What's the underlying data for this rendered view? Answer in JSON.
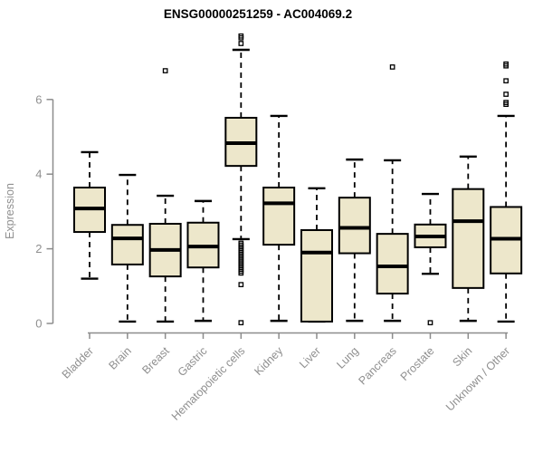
{
  "chart_data": {
    "type": "boxplot",
    "title": "ENSG00000251259 - AC004069.2",
    "ylabel": "Expression",
    "xlabel": "",
    "yticks": [
      0,
      2,
      4,
      6
    ],
    "ylim": [
      -0.2,
      7.9
    ],
    "grid": false,
    "legend": "none",
    "categories": [
      "Bladder",
      "Brain",
      "Breast",
      "Gastric",
      "Hematopoietic cells",
      "Kidney",
      "Liver",
      "Lung",
      "Pancreas",
      "Prostate",
      "Skin",
      "Unknown / Other"
    ],
    "boxes": [
      {
        "category": "Bladder",
        "low": 1.2,
        "q1": 2.45,
        "median": 3.08,
        "q3": 3.64,
        "high": 4.59,
        "outliers": []
      },
      {
        "category": "Brain",
        "low": 0.05,
        "q1": 1.58,
        "median": 2.28,
        "q3": 2.64,
        "high": 3.98,
        "outliers": []
      },
      {
        "category": "Breast",
        "low": 0.05,
        "q1": 1.26,
        "median": 1.97,
        "q3": 2.67,
        "high": 3.42,
        "outliers": [
          6.77
        ]
      },
      {
        "category": "Gastric",
        "low": 0.07,
        "q1": 1.5,
        "median": 2.06,
        "q3": 2.7,
        "high": 3.28,
        "outliers": []
      },
      {
        "category": "Hematopoietic cells",
        "low": 2.26,
        "q1": 4.22,
        "median": 4.83,
        "q3": 5.51,
        "high": 7.33,
        "outliers": [
          7.7,
          7.65,
          7.5,
          2.15,
          2.1,
          2.05,
          2.0,
          1.95,
          1.9,
          1.85,
          1.8,
          1.75,
          1.7,
          1.65,
          1.6,
          1.55,
          1.5,
          1.45,
          1.4,
          1.35,
          1.04,
          0.02
        ]
      },
      {
        "category": "Kidney",
        "low": 0.07,
        "q1": 2.11,
        "median": 3.22,
        "q3": 3.64,
        "high": 5.56,
        "outliers": []
      },
      {
        "category": "Liver",
        "low": 0.05,
        "q1": 0.05,
        "median": 1.9,
        "q3": 2.5,
        "high": 3.62,
        "outliers": []
      },
      {
        "category": "Lung",
        "low": 0.07,
        "q1": 1.88,
        "median": 2.56,
        "q3": 3.37,
        "high": 4.39,
        "outliers": []
      },
      {
        "category": "Pancreas",
        "low": 0.07,
        "q1": 0.8,
        "median": 1.53,
        "q3": 2.4,
        "high": 4.37,
        "outliers": [
          6.87
        ]
      },
      {
        "category": "Prostate",
        "low": 1.33,
        "q1": 2.04,
        "median": 2.33,
        "q3": 2.65,
        "high": 3.47,
        "outliers": [
          0.02
        ]
      },
      {
        "category": "Skin",
        "low": 0.07,
        "q1": 0.95,
        "median": 2.74,
        "q3": 3.6,
        "high": 4.47,
        "outliers": []
      },
      {
        "category": "Unknown / Other",
        "low": 0.05,
        "q1": 1.34,
        "median": 2.27,
        "q3": 3.12,
        "high": 5.56,
        "outliers": [
          6.95,
          6.9,
          6.5,
          6.14,
          5.92,
          5.87
        ]
      }
    ],
    "colors": {
      "box_fill": "#EDE7CB",
      "box_stroke": "#000000",
      "median": "#000000",
      "whisker": "#000000",
      "axis": "#8C8C8C",
      "tick_label": "#8F8F8F",
      "title": "#000000",
      "background": "#FFFFFF"
    }
  }
}
